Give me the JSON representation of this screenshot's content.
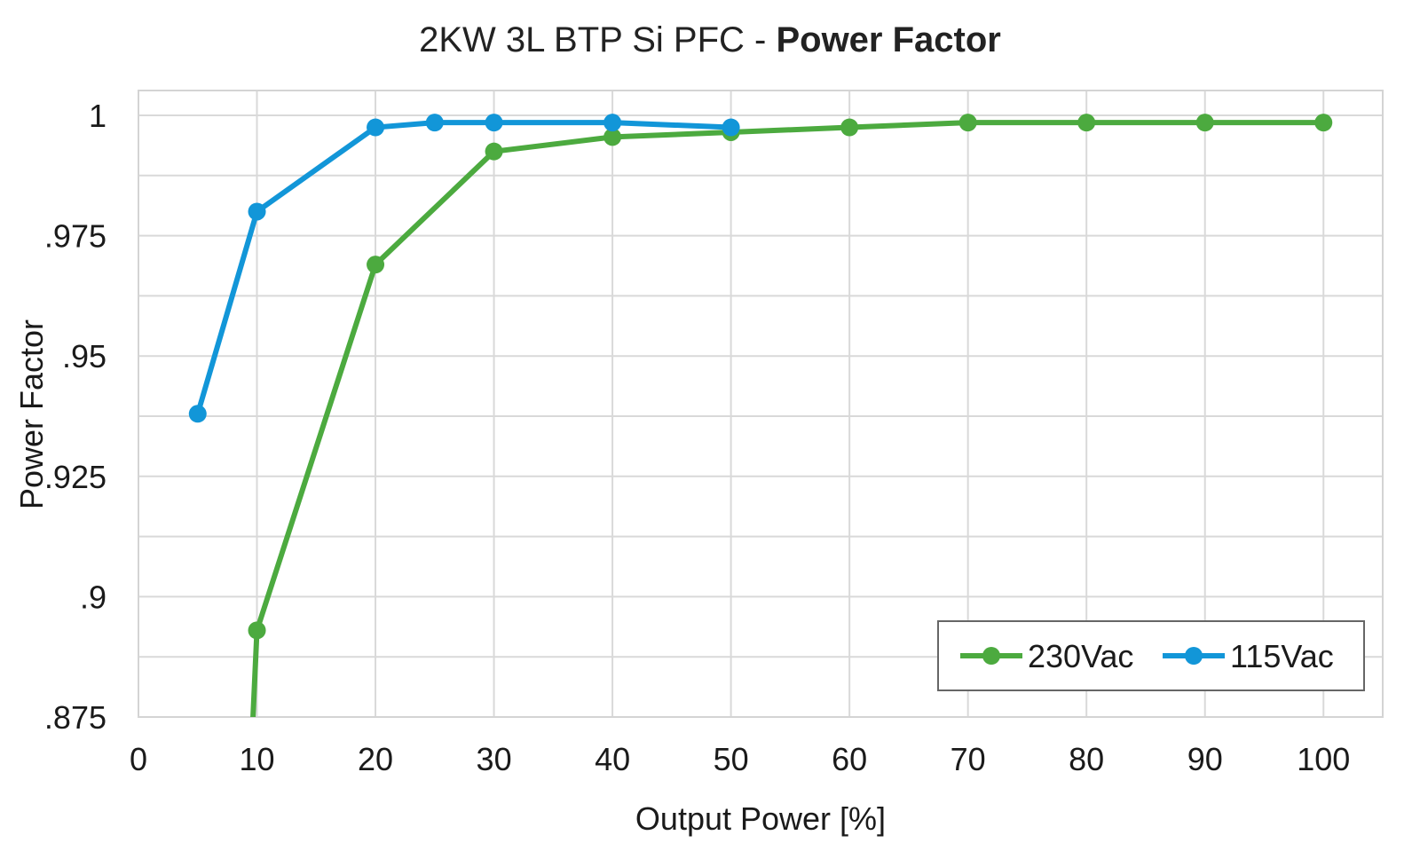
{
  "chart_data": {
    "type": "line",
    "title": "2KW 3L BTP Si PFC - ",
    "title_bold": "Power Factor",
    "xlabel": "Output Power [%]",
    "ylabel": "Power Factor",
    "xlim": [
      0,
      105
    ],
    "ylim": [
      0.875,
      1.005
    ],
    "x_ticks": [
      0,
      10,
      20,
      30,
      40,
      50,
      60,
      70,
      80,
      90,
      100
    ],
    "x_tick_labels": [
      "0",
      "10",
      "20",
      "30",
      "40",
      "50",
      "60",
      "70",
      "80",
      "90",
      "100"
    ],
    "y_ticks": [
      0.875,
      0.9,
      0.925,
      0.95,
      0.975,
      1.0
    ],
    "y_tick_labels": [
      ".875",
      ".9",
      ".925",
      ".95",
      ".975",
      "1"
    ],
    "grid": true,
    "legend_position": "bottom-right",
    "series": [
      {
        "name": "230Vac",
        "color": "#4caa3f",
        "x": [
          10,
          20,
          30,
          40,
          50,
          60,
          70,
          80,
          90,
          100
        ],
        "y": [
          0.893,
          0.969,
          0.9925,
          0.9955,
          0.9965,
          0.9975,
          0.9985,
          0.9985,
          0.9985,
          0.9985
        ],
        "line_extends_below_axis_from_x": 9.6
      },
      {
        "name": "115Vac",
        "color": "#1296d8",
        "x": [
          5,
          10,
          20,
          25,
          30,
          40,
          50
        ],
        "y": [
          0.938,
          0.98,
          0.9975,
          0.9985,
          0.9985,
          0.9985,
          0.9975
        ]
      }
    ]
  }
}
